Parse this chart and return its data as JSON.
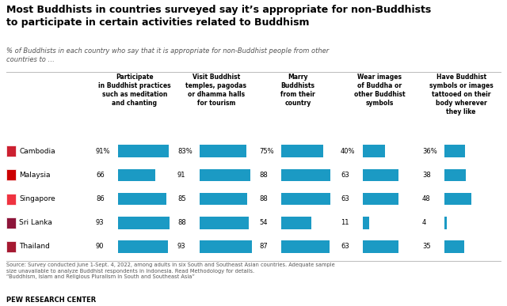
{
  "title": "Most Buddhists in countries surveyed say it’s appropriate for non-Buddhists\nto participate in certain activities related to Buddhism",
  "subtitle": "% of Buddhists in each country who say that it is appropriate for non-Buddhist people from other\ncountries to …",
  "countries": [
    "Cambodia",
    "Malaysia",
    "Singapore",
    "Sri Lanka",
    "Thailand"
  ],
  "col_headers": [
    "Participate\nin Buddhist practices\nsuch as meditation\nand chanting",
    "Visit Buddhist\ntemples, pagodas\nor dhamma halls\nfor tourism",
    "Marry\nBuddhists\nfrom their\ncountry",
    "Wear images\nof Buddha or\nother Buddhist\nsymbols",
    "Have Buddhist\nsymbols or images\ntattooed on their\nbody wherever\nthey like"
  ],
  "data": {
    "Cambodia": [
      91,
      83,
      75,
      40,
      36
    ],
    "Malaysia": [
      66,
      91,
      88,
      63,
      38
    ],
    "Singapore": [
      86,
      85,
      88,
      63,
      48
    ],
    "Sri Lanka": [
      93,
      88,
      54,
      11,
      4
    ],
    "Thailand": [
      90,
      93,
      87,
      63,
      35
    ]
  },
  "bar_color": "#1B9AC4",
  "source_text": "Source: Survey conducted June 1-Sept. 4, 2022, among adults in six South and Southeast Asian countries. Adequate sample\nsize unavailable to analyze Buddhist respondents in Indonesia. Read Methodology for details.\n“Buddhism, Islam and Religious Pluralism in South and Southeast Asia”",
  "footer": "PEW RESEARCH CENTER",
  "background_color": "#FFFFFF",
  "text_color": "#000000"
}
